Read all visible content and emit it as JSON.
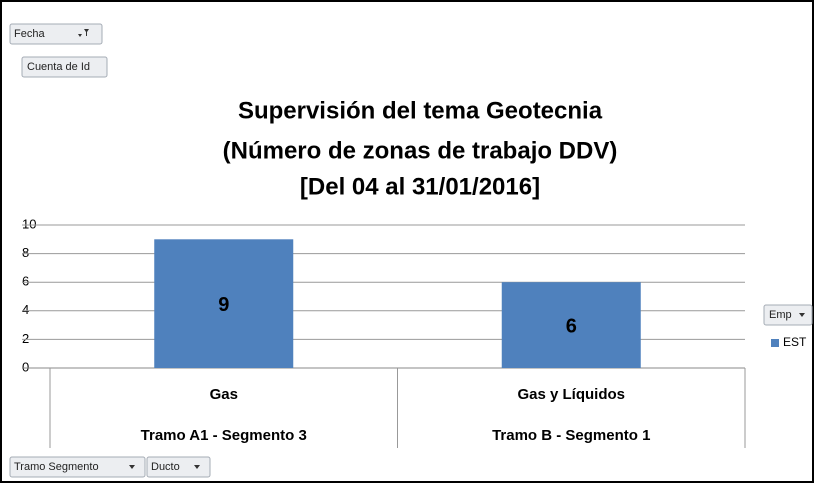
{
  "chart_data": {
    "type": "bar",
    "title": [
      "Supervisión del tema Geotecnia",
      "(Número de zonas de trabajo DDV)",
      "[Del 04 al 31/01/2016]"
    ],
    "categories": [
      "Gas",
      "Gas y Líquidos"
    ],
    "category_groups": [
      "Tramo A1 - Segmento 3",
      "Tramo B - Segmento 1"
    ],
    "series": [
      {
        "name": "EST",
        "color": "#4f81bd",
        "values": [
          9,
          6
        ]
      }
    ],
    "ylim": [
      0,
      10
    ],
    "yticks": [
      0,
      2,
      4,
      6,
      8,
      10
    ],
    "grid": true,
    "legend": "right"
  },
  "pivot_buttons": {
    "report_filter": "Fecha",
    "values_field": "Cuenta de Id",
    "legend_field": "Emp",
    "axis_fields": [
      "Tramo Segmento",
      "Ducto"
    ]
  }
}
